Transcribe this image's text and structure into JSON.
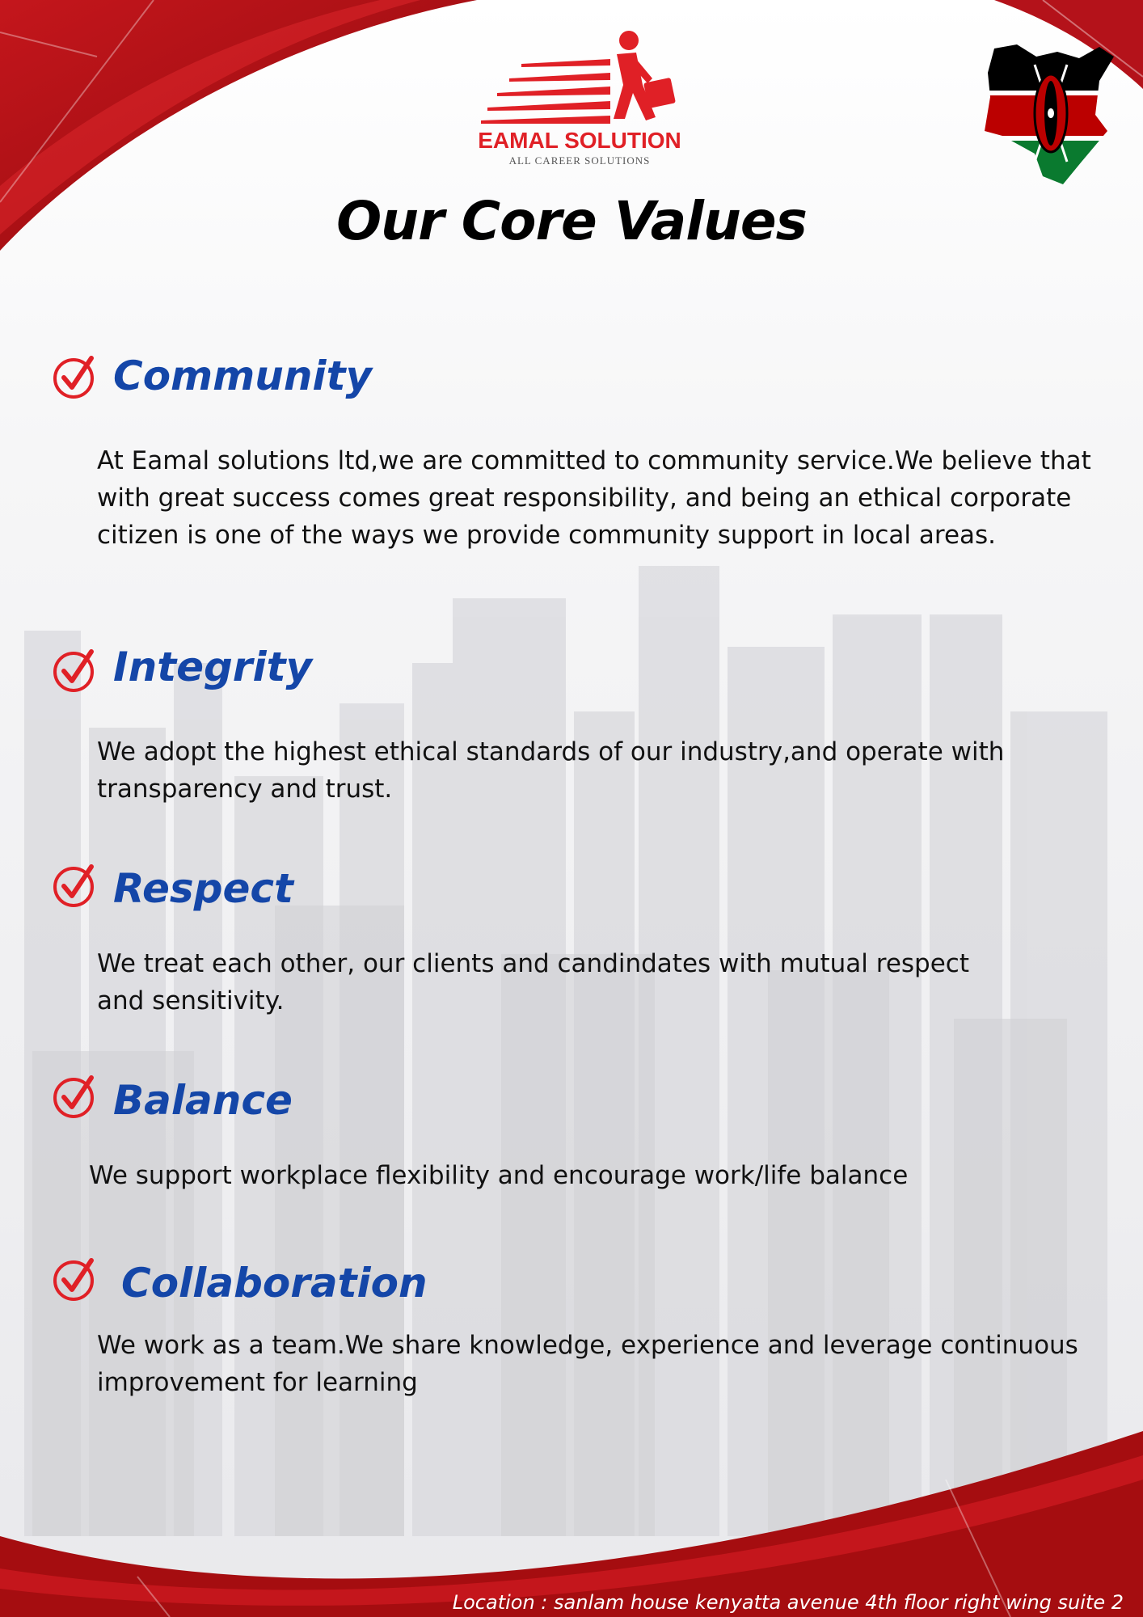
{
  "brand": {
    "logo_name": "EAMAL SOLUTION",
    "logo_tagline": "ALL CAREER SOLUTIONS"
  },
  "title": "Our Core Values",
  "values": [
    {
      "title": "Community",
      "body": "At Eamal solutions ltd,we are committed to community service.We believe that with great success comes great responsibility, and being an ethical corporate citizen is one of the ways we provide community support in local areas."
    },
    {
      "title": "Integrity",
      "body": "We adopt the highest ethical standards of our industry,and operate with transparency and trust."
    },
    {
      "title": "Respect",
      "body": "We treat each other, our clients and candindates with mutual respect and sensitivity."
    },
    {
      "title": "Balance",
      "body": "We support workplace flexibility and encourage work/life balance"
    },
    {
      "title": "Collaboration",
      "body": "We work as a team.We share knowledge, experience and leverage continuous improvement for learning"
    }
  ],
  "footer": {
    "location": "Location : sanlam house kenyatta avenue 4th floor right wing suite 2"
  },
  "colors": {
    "brand_red": "#e02026",
    "dark_red": "#a50d10",
    "title_blue": "#1446a8",
    "kenya_green": "#0a7a2f"
  },
  "icons": [
    "check-circle-icon",
    "running-man-logo",
    "kenya-flag-map"
  ]
}
